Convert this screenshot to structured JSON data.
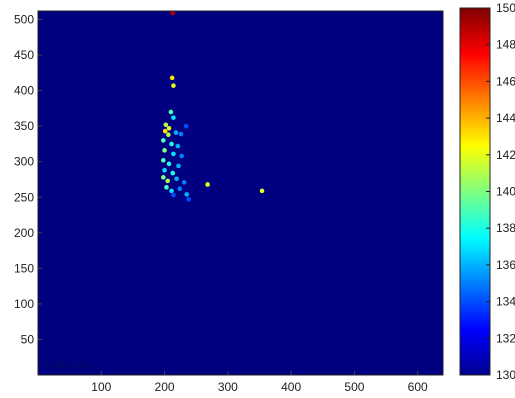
{
  "chart_data": {
    "type": "heatmap",
    "title": "",
    "xlabel": "",
    "ylabel": "",
    "xlim": [
      0,
      640
    ],
    "ylim": [
      0,
      512
    ],
    "x_ticks": [
      100,
      200,
      300,
      400,
      500,
      600
    ],
    "y_ticks": [
      50,
      100,
      150,
      200,
      250,
      300,
      350,
      400,
      450,
      500
    ],
    "colorbar": {
      "colormap": "jet",
      "min": 130,
      "max": 150,
      "ticks": [
        130,
        132,
        134,
        136,
        138,
        140,
        142,
        144,
        146,
        148,
        150
      ]
    },
    "background_value": 130,
    "corner_note": "THDR 20%",
    "points": [
      {
        "x": 213,
        "y": 509,
        "value": 149
      },
      {
        "x": 212,
        "y": 418,
        "value": 143
      },
      {
        "x": 214,
        "y": 407,
        "value": 142
      },
      {
        "x": 210,
        "y": 370,
        "value": 139
      },
      {
        "x": 214,
        "y": 362,
        "value": 137
      },
      {
        "x": 202,
        "y": 352,
        "value": 141
      },
      {
        "x": 207,
        "y": 347,
        "value": 142
      },
      {
        "x": 201,
        "y": 343,
        "value": 143
      },
      {
        "x": 206,
        "y": 338,
        "value": 141
      },
      {
        "x": 218,
        "y": 341,
        "value": 136
      },
      {
        "x": 226,
        "y": 339,
        "value": 135
      },
      {
        "x": 234,
        "y": 350,
        "value": 134
      },
      {
        "x": 198,
        "y": 330,
        "value": 139
      },
      {
        "x": 211,
        "y": 325,
        "value": 138
      },
      {
        "x": 221,
        "y": 322,
        "value": 136
      },
      {
        "x": 200,
        "y": 316,
        "value": 140
      },
      {
        "x": 214,
        "y": 311,
        "value": 137
      },
      {
        "x": 227,
        "y": 308,
        "value": 135
      },
      {
        "x": 198,
        "y": 302,
        "value": 139
      },
      {
        "x": 207,
        "y": 297,
        "value": 138
      },
      {
        "x": 222,
        "y": 294,
        "value": 136
      },
      {
        "x": 200,
        "y": 288,
        "value": 137
      },
      {
        "x": 213,
        "y": 284,
        "value": 138
      },
      {
        "x": 198,
        "y": 278,
        "value": 140
      },
      {
        "x": 205,
        "y": 273,
        "value": 141
      },
      {
        "x": 219,
        "y": 276,
        "value": 136
      },
      {
        "x": 231,
        "y": 271,
        "value": 135
      },
      {
        "x": 203,
        "y": 264,
        "value": 139
      },
      {
        "x": 211,
        "y": 259,
        "value": 137
      },
      {
        "x": 224,
        "y": 262,
        "value": 135
      },
      {
        "x": 235,
        "y": 254,
        "value": 136
      },
      {
        "x": 214,
        "y": 253,
        "value": 134
      },
      {
        "x": 238,
        "y": 247,
        "value": 134
      },
      {
        "x": 268,
        "y": 268,
        "value": 142
      },
      {
        "x": 354,
        "y": 259,
        "value": 142
      }
    ]
  }
}
